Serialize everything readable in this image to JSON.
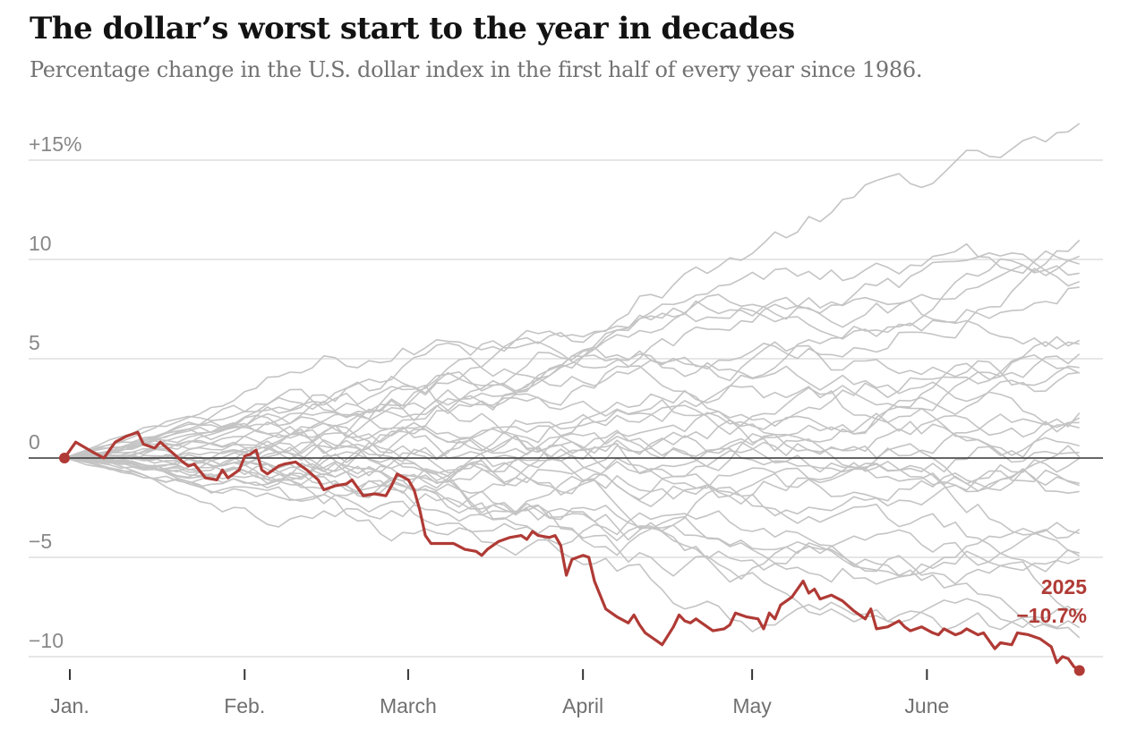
{
  "title": "The dollar’s worst start to the year in decades",
  "subtitle": "Percentage change in the U.S. dollar index in the first half of every year since 1986.",
  "colors": {
    "highlight": "#b03a35",
    "background_lines": "#c4c4c4",
    "zero_line": "#333333",
    "grid": "#dddddd"
  },
  "chart_data": {
    "type": "line",
    "title": "The dollar’s worst start to the year in decades",
    "subtitle": "Percentage change in the U.S. dollar index in the first half of every year since 1986.",
    "xlabel": "",
    "ylabel": "",
    "x_unit": "day of year",
    "xlim": [
      1,
      182
    ],
    "ylim": [
      -11,
      16
    ],
    "grid": true,
    "y_ticks": [
      {
        "value": 15,
        "label": "+15%"
      },
      {
        "value": 10,
        "label": "10"
      },
      {
        "value": 5,
        "label": "5"
      },
      {
        "value": 0,
        "label": "0"
      },
      {
        "value": -5,
        "label": "−5"
      },
      {
        "value": -10,
        "label": "−10"
      }
    ],
    "x_ticks": [
      {
        "value": 1,
        "label": "Jan."
      },
      {
        "value": 32,
        "label": "Feb."
      },
      {
        "value": 61,
        "label": "March"
      },
      {
        "value": 92,
        "label": "April"
      },
      {
        "value": 122,
        "label": "May"
      },
      {
        "value": 153,
        "label": "June"
      }
    ],
    "highlight_series": {
      "name": "2025",
      "end_label": "−10.7%",
      "points": [
        [
          1,
          0
        ],
        [
          3,
          0.8
        ],
        [
          6,
          0.3
        ],
        [
          8,
          0.0
        ],
        [
          10,
          0.8
        ],
        [
          12,
          1.1
        ],
        [
          14,
          1.3
        ],
        [
          15,
          0.7
        ],
        [
          17,
          0.5
        ],
        [
          18,
          0.8
        ],
        [
          20,
          0.3
        ],
        [
          22,
          -0.2
        ],
        [
          23,
          -0.4
        ],
        [
          24,
          -0.3
        ],
        [
          26,
          -1.0
        ],
        [
          28,
          -1.1
        ],
        [
          29,
          -0.6
        ],
        [
          30,
          -1.0
        ],
        [
          32,
          -0.6
        ],
        [
          33,
          0.1
        ],
        [
          34,
          0.2
        ],
        [
          35,
          0.4
        ],
        [
          36,
          -0.6
        ],
        [
          37,
          -0.8
        ],
        [
          39,
          -0.4
        ],
        [
          40,
          -0.3
        ],
        [
          42,
          -0.2
        ],
        [
          43,
          -0.4
        ],
        [
          44,
          -0.6
        ],
        [
          46,
          -1.1
        ],
        [
          47,
          -1.6
        ],
        [
          49,
          -1.4
        ],
        [
          51,
          -1.3
        ],
        [
          52,
          -1.1
        ],
        [
          53,
          -1.5
        ],
        [
          54,
          -1.9
        ],
        [
          56,
          -1.8
        ],
        [
          58,
          -1.9
        ],
        [
          59,
          -1.4
        ],
        [
          60,
          -0.8
        ],
        [
          62,
          -1.1
        ],
        [
          63,
          -1.6
        ],
        [
          64,
          -2.6
        ],
        [
          65,
          -3.9
        ],
        [
          66,
          -4.3
        ],
        [
          68,
          -4.3
        ],
        [
          70,
          -4.3
        ],
        [
          72,
          -4.6
        ],
        [
          74,
          -4.7
        ],
        [
          75,
          -4.9
        ],
        [
          76,
          -4.6
        ],
        [
          78,
          -4.2
        ],
        [
          80,
          -4.0
        ],
        [
          82,
          -3.9
        ],
        [
          83,
          -4.1
        ],
        [
          84,
          -3.7
        ],
        [
          85,
          -3.9
        ],
        [
          87,
          -4.0
        ],
        [
          88,
          -3.9
        ],
        [
          89,
          -4.4
        ],
        [
          90,
          -5.9
        ],
        [
          91,
          -5.1
        ],
        [
          93,
          -4.9
        ],
        [
          94,
          -5.0
        ],
        [
          95,
          -6.2
        ],
        [
          97,
          -7.6
        ],
        [
          99,
          -8.0
        ],
        [
          101,
          -8.3
        ],
        [
          102,
          -7.9
        ],
        [
          103,
          -8.4
        ],
        [
          104,
          -8.8
        ],
        [
          106,
          -9.2
        ],
        [
          107,
          -9.4
        ],
        [
          109,
          -8.5
        ],
        [
          110,
          -7.9
        ],
        [
          111,
          -8.2
        ],
        [
          112,
          -8.3
        ],
        [
          113,
          -8.1
        ],
        [
          115,
          -8.5
        ],
        [
          116,
          -8.7
        ],
        [
          118,
          -8.6
        ],
        [
          119,
          -8.4
        ],
        [
          120,
          -7.8
        ],
        [
          122,
          -8.0
        ],
        [
          124,
          -8.1
        ],
        [
          125,
          -8.6
        ],
        [
          126,
          -7.8
        ],
        [
          127,
          -8.1
        ],
        [
          128,
          -7.4
        ],
        [
          130,
          -7.0
        ],
        [
          132,
          -6.2
        ],
        [
          133,
          -6.8
        ],
        [
          134,
          -6.6
        ],
        [
          135,
          -7.1
        ],
        [
          137,
          -6.9
        ],
        [
          139,
          -7.2
        ],
        [
          141,
          -7.7
        ],
        [
          143,
          -8.1
        ],
        [
          144,
          -7.6
        ],
        [
          145,
          -8.6
        ],
        [
          147,
          -8.5
        ],
        [
          149,
          -8.2
        ],
        [
          150,
          -8.5
        ],
        [
          151,
          -8.7
        ],
        [
          153,
          -8.5
        ],
        [
          155,
          -8.8
        ],
        [
          156,
          -8.9
        ],
        [
          157,
          -8.6
        ],
        [
          159,
          -8.9
        ],
        [
          160,
          -8.8
        ],
        [
          161,
          -8.6
        ],
        [
          163,
          -8.9
        ],
        [
          164,
          -8.8
        ],
        [
          166,
          -9.6
        ],
        [
          167,
          -9.3
        ],
        [
          169,
          -9.4
        ],
        [
          170,
          -8.8
        ],
        [
          172,
          -8.9
        ],
        [
          174,
          -9.1
        ],
        [
          176,
          -9.5
        ],
        [
          177,
          -10.3
        ],
        [
          178,
          -10.0
        ],
        [
          179,
          -10.1
        ],
        [
          180,
          -10.5
        ],
        [
          181,
          -10.7
        ]
      ]
    },
    "background_series": [
      {
        "trend": 15.8,
        "amp": 0.5,
        "phase": 0.3
      },
      {
        "trend": 10.5,
        "amp": 0.9,
        "phase": 1.1
      },
      {
        "trend": 10.2,
        "amp": 1.2,
        "phase": 2.3
      },
      {
        "trend": 9.8,
        "amp": 0.8,
        "phase": 3.0
      },
      {
        "trend": 9.5,
        "amp": 1.4,
        "phase": 4.1
      },
      {
        "trend": 9.2,
        "amp": 1.0,
        "phase": 5.2
      },
      {
        "trend": 8.7,
        "amp": 1.3,
        "phase": 0.8
      },
      {
        "trend": 8.0,
        "amp": 1.5,
        "phase": 1.9
      },
      {
        "trend": 6.0,
        "amp": 1.1,
        "phase": 2.7
      },
      {
        "trend": 5.0,
        "amp": 1.6,
        "phase": 3.6
      },
      {
        "trend": 4.6,
        "amp": 1.0,
        "phase": 4.4
      },
      {
        "trend": 4.1,
        "amp": 1.2,
        "phase": 5.5
      },
      {
        "trend": 3.6,
        "amp": 0.9,
        "phase": 0.4
      },
      {
        "trend": 3.1,
        "amp": 1.3,
        "phase": 1.6
      },
      {
        "trend": 2.6,
        "amp": 1.1,
        "phase": 2.5
      },
      {
        "trend": 2.0,
        "amp": 1.4,
        "phase": 3.3
      },
      {
        "trend": 1.6,
        "amp": 1.0,
        "phase": 4.8
      },
      {
        "trend": 1.1,
        "amp": 1.2,
        "phase": 5.9
      },
      {
        "trend": 0.6,
        "amp": 0.9,
        "phase": 0.9
      },
      {
        "trend": 0.1,
        "amp": 1.3,
        "phase": 2.0
      },
      {
        "trend": -0.4,
        "amp": 1.0,
        "phase": 3.1
      },
      {
        "trend": -1.0,
        "amp": 1.2,
        "phase": 4.2
      },
      {
        "trend": -1.5,
        "amp": 1.1,
        "phase": 5.0
      },
      {
        "trend": -2.0,
        "amp": 1.4,
        "phase": 0.2
      },
      {
        "trend": -2.8,
        "amp": 1.3,
        "phase": 1.4
      },
      {
        "trend": -3.5,
        "amp": 1.2,
        "phase": 2.8
      },
      {
        "trend": -5.0,
        "amp": 1.5,
        "phase": 3.9
      },
      {
        "trend": -5.6,
        "amp": 1.1,
        "phase": 4.6
      },
      {
        "trend": -6.2,
        "amp": 1.4,
        "phase": 5.7
      },
      {
        "trend": -6.8,
        "amp": 1.0,
        "phase": 0.6
      },
      {
        "trend": -7.5,
        "amp": 1.6,
        "phase": 1.8
      },
      {
        "trend": -8.2,
        "amp": 1.2,
        "phase": 3.4
      },
      {
        "trend": -9.5,
        "amp": 1.3,
        "phase": 4.9
      }
    ]
  }
}
